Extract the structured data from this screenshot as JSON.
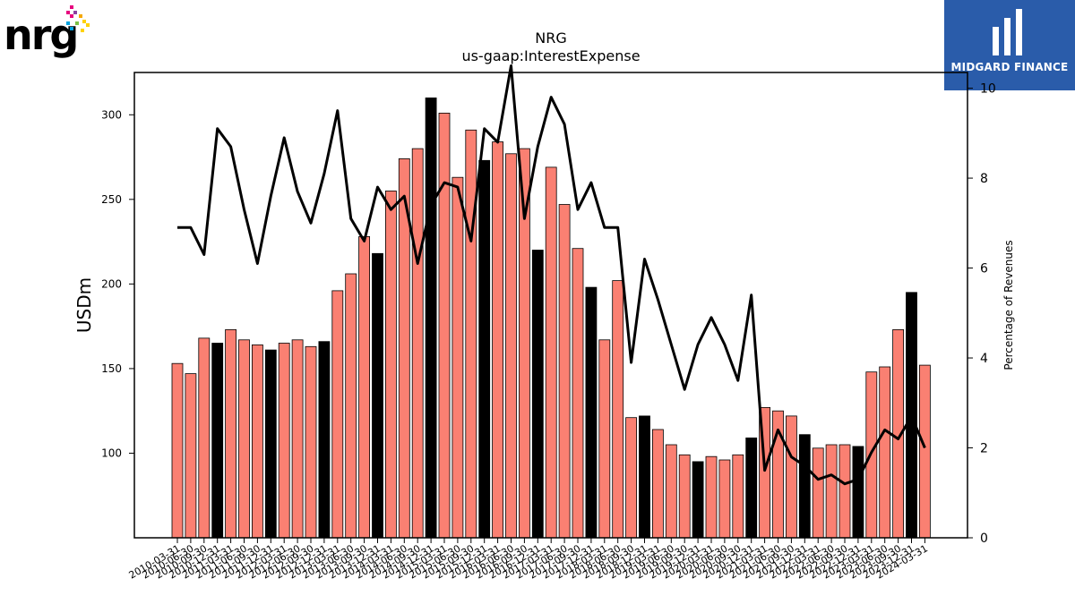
{
  "logos": {
    "company_wordmark": "nrg",
    "publisher_name": "MIDGARD FINANCE"
  },
  "chart_data": {
    "type": "bar+line",
    "title": "NRG",
    "subtitle": "us-gaap:InterestExpense",
    "ylabel": "USDm",
    "y2label": "Percentage of Revenues",
    "ylim": [
      50,
      325
    ],
    "y2lim": [
      0,
      10.35
    ],
    "yticks": [
      100,
      150,
      200,
      250,
      300
    ],
    "y2ticks": [
      0,
      2,
      4,
      6,
      8,
      10
    ],
    "colors": {
      "bar": "#fa8072",
      "bar_q4": "#000000",
      "line": "#000000"
    },
    "categories": [
      "2010-03-31",
      "2010-06-30",
      "2010-09-30",
      "2010-12-31",
      "2011-03-31",
      "2011-06-30",
      "2011-09-30",
      "2011-12-31",
      "2012-03-31",
      "2012-06-30",
      "2012-09-30",
      "2012-12-31",
      "2013-03-31",
      "2013-06-30",
      "2013-09-30",
      "2013-12-31",
      "2014-03-31",
      "2014-06-30",
      "2014-09-30",
      "2014-12-31",
      "2015-03-31",
      "2015-06-30",
      "2015-09-30",
      "2015-12-31",
      "2016-03-31",
      "2016-06-30",
      "2016-09-30",
      "2016-12-31",
      "2017-03-31",
      "2017-06-30",
      "2017-09-30",
      "2017-12-31",
      "2018-03-31",
      "2018-06-30",
      "2018-09-30",
      "2018-12-31",
      "2019-03-31",
      "2019-06-30",
      "2019-09-30",
      "2019-12-31",
      "2020-03-31",
      "2020-06-30",
      "2020-09-30",
      "2020-12-31",
      "2021-03-31",
      "2021-06-30",
      "2021-09-30",
      "2021-12-31",
      "2022-03-31",
      "2022-06-30",
      "2022-09-30",
      "2022-12-31",
      "2023-03-31",
      "2023-06-30",
      "2023-09-30",
      "2023-12-31",
      "2024-03-31"
    ],
    "series": [
      {
        "type": "bar",
        "values": [
          153,
          147,
          168,
          165,
          173,
          167,
          164,
          161,
          165,
          167,
          163,
          166,
          196,
          206,
          228,
          218,
          255,
          274,
          280,
          310,
          301,
          263,
          291,
          273,
          284,
          277,
          280,
          220,
          269,
          247,
          221,
          198,
          167,
          202,
          121,
          122,
          114,
          105,
          99,
          95,
          98,
          96,
          99,
          109,
          127,
          125,
          122,
          111,
          103,
          105,
          105,
          104,
          148,
          151,
          173,
          195,
          152
        ]
      },
      {
        "type": "line",
        "axis": "right",
        "values": [
          6.9,
          6.9,
          6.3,
          9.1,
          8.7,
          7.3,
          6.1,
          7.6,
          8.9,
          7.7,
          7.0,
          8.1,
          9.5,
          7.1,
          6.6,
          7.8,
          7.3,
          7.6,
          6.1,
          7.4,
          7.9,
          7.8,
          6.6,
          9.1,
          8.8,
          10.5,
          7.1,
          8.7,
          9.8,
          9.2,
          7.3,
          7.9,
          6.9,
          6.9,
          3.9,
          6.2,
          5.3,
          4.3,
          3.3,
          4.3,
          4.9,
          4.3,
          3.5,
          5.4,
          1.5,
          2.4,
          1.8,
          1.6,
          1.3,
          1.4,
          1.2,
          1.3,
          1.9,
          2.4,
          2.2,
          2.7,
          2.0
        ]
      }
    ]
  }
}
